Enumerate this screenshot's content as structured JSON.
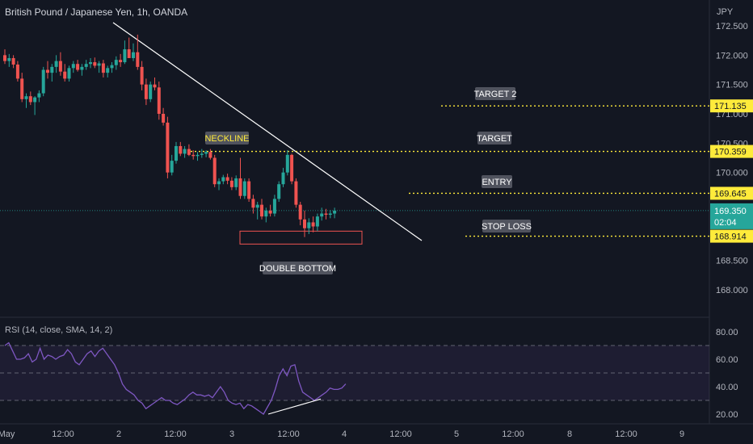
{
  "header": {
    "title": "British Pound / Japanese Yen, 1h, OANDA",
    "currency": "JPY"
  },
  "colors": {
    "background": "#131722",
    "up": "#26a69a",
    "down": "#ef5350",
    "levels": "#ffeb3b",
    "trendline": "#ffffff",
    "rsi": "#7e57c2",
    "axis_text": "#b2b5be",
    "last_price_badge": "#26a69a"
  },
  "chart_data": [
    {
      "type": "candlestick",
      "title": "British Pound / Japanese Yen, 1h, OANDA",
      "ylim": [
        167.7,
        172.75
      ],
      "y_ticks": [
        172.5,
        172.0,
        171.5,
        171.0,
        170.5,
        170.0,
        169.5,
        169.0,
        168.5,
        168.0
      ],
      "y_tick_labels": [
        "172.500",
        "172.000",
        "171.500",
        "171.000",
        "170.500",
        "170.000",
        "",
        "",
        "168.500",
        "168.000"
      ],
      "x_ticks": [
        "May",
        "12:00",
        "2",
        "12:00",
        "3",
        "12:00",
        "4",
        "12:00",
        "5",
        "12:00",
        "8",
        "12:00",
        "9"
      ],
      "last_price": {
        "value": 169.35,
        "label": "169.350",
        "countdown": "02:04"
      },
      "candles": [
        {
          "o": 172.0,
          "h": 172.1,
          "l": 171.85,
          "c": 171.9
        },
        {
          "o": 171.9,
          "h": 172.02,
          "l": 171.8,
          "c": 171.95
        },
        {
          "o": 171.95,
          "h": 172.0,
          "l": 171.78,
          "c": 171.84
        },
        {
          "o": 171.84,
          "h": 171.9,
          "l": 171.55,
          "c": 171.6
        },
        {
          "o": 171.6,
          "h": 171.7,
          "l": 171.2,
          "c": 171.25
        },
        {
          "o": 171.25,
          "h": 171.35,
          "l": 171.1,
          "c": 171.3
        },
        {
          "o": 171.3,
          "h": 171.38,
          "l": 171.15,
          "c": 171.2
        },
        {
          "o": 171.2,
          "h": 171.3,
          "l": 170.98,
          "c": 171.28
        },
        {
          "o": 171.28,
          "h": 171.4,
          "l": 171.2,
          "c": 171.35
        },
        {
          "o": 171.35,
          "h": 171.8,
          "l": 171.3,
          "c": 171.75
        },
        {
          "o": 171.75,
          "h": 171.9,
          "l": 171.6,
          "c": 171.7
        },
        {
          "o": 171.7,
          "h": 171.85,
          "l": 171.55,
          "c": 171.8
        },
        {
          "o": 171.8,
          "h": 172.0,
          "l": 171.7,
          "c": 171.9
        },
        {
          "o": 171.9,
          "h": 172.05,
          "l": 171.65,
          "c": 171.72
        },
        {
          "o": 171.72,
          "h": 171.85,
          "l": 171.55,
          "c": 171.6
        },
        {
          "o": 171.6,
          "h": 171.82,
          "l": 171.55,
          "c": 171.78
        },
        {
          "o": 171.78,
          "h": 171.9,
          "l": 171.7,
          "c": 171.85
        },
        {
          "o": 171.85,
          "h": 171.92,
          "l": 171.72,
          "c": 171.75
        },
        {
          "o": 171.75,
          "h": 171.85,
          "l": 171.65,
          "c": 171.8
        },
        {
          "o": 171.8,
          "h": 171.92,
          "l": 171.75,
          "c": 171.85
        },
        {
          "o": 171.85,
          "h": 171.95,
          "l": 171.78,
          "c": 171.88
        },
        {
          "o": 171.88,
          "h": 171.96,
          "l": 171.78,
          "c": 171.82
        },
        {
          "o": 171.82,
          "h": 171.9,
          "l": 171.7,
          "c": 171.86
        },
        {
          "o": 171.86,
          "h": 171.92,
          "l": 171.62,
          "c": 171.7
        },
        {
          "o": 171.7,
          "h": 171.82,
          "l": 171.62,
          "c": 171.78
        },
        {
          "o": 171.78,
          "h": 171.88,
          "l": 171.7,
          "c": 171.83
        },
        {
          "o": 171.83,
          "h": 171.98,
          "l": 171.75,
          "c": 171.92
        },
        {
          "o": 171.92,
          "h": 172.02,
          "l": 171.8,
          "c": 171.88
        },
        {
          "o": 171.88,
          "h": 172.25,
          "l": 171.85,
          "c": 172.1
        },
        {
          "o": 172.1,
          "h": 172.3,
          "l": 172.0,
          "c": 171.95
        },
        {
          "o": 171.95,
          "h": 172.2,
          "l": 171.9,
          "c": 172.05
        },
        {
          "o": 172.05,
          "h": 172.35,
          "l": 171.75,
          "c": 171.8
        },
        {
          "o": 171.8,
          "h": 171.9,
          "l": 171.4,
          "c": 171.5
        },
        {
          "o": 171.5,
          "h": 171.6,
          "l": 171.15,
          "c": 171.25
        },
        {
          "o": 171.25,
          "h": 171.55,
          "l": 171.2,
          "c": 171.5
        },
        {
          "o": 171.5,
          "h": 171.62,
          "l": 171.4,
          "c": 171.45
        },
        {
          "o": 171.45,
          "h": 171.55,
          "l": 170.9,
          "c": 171.0
        },
        {
          "o": 171.0,
          "h": 171.1,
          "l": 170.8,
          "c": 170.85
        },
        {
          "o": 170.85,
          "h": 170.95,
          "l": 169.9,
          "c": 170.0
        },
        {
          "o": 170.0,
          "h": 170.3,
          "l": 169.95,
          "c": 170.2
        },
        {
          "o": 170.2,
          "h": 170.52,
          "l": 170.15,
          "c": 170.45
        },
        {
          "o": 170.45,
          "h": 170.52,
          "l": 170.28,
          "c": 170.32
        },
        {
          "o": 170.32,
          "h": 170.45,
          "l": 170.25,
          "c": 170.4
        },
        {
          "o": 170.4,
          "h": 170.48,
          "l": 170.28,
          "c": 170.3
        },
        {
          "o": 170.3,
          "h": 170.38,
          "l": 170.22,
          "c": 170.28
        },
        {
          "o": 170.28,
          "h": 170.35,
          "l": 170.2,
          "c": 170.3
        },
        {
          "o": 170.3,
          "h": 170.4,
          "l": 170.25,
          "c": 170.32
        },
        {
          "o": 170.32,
          "h": 170.38,
          "l": 170.26,
          "c": 170.35
        },
        {
          "o": 170.35,
          "h": 170.4,
          "l": 170.22,
          "c": 170.25
        },
        {
          "o": 170.25,
          "h": 170.3,
          "l": 169.75,
          "c": 169.8
        },
        {
          "o": 169.8,
          "h": 169.9,
          "l": 169.7,
          "c": 169.85
        },
        {
          "o": 169.85,
          "h": 169.96,
          "l": 169.8,
          "c": 169.92
        },
        {
          "o": 169.92,
          "h": 169.98,
          "l": 169.8,
          "c": 169.86
        },
        {
          "o": 169.86,
          "h": 169.92,
          "l": 169.7,
          "c": 169.75
        },
        {
          "o": 169.75,
          "h": 169.95,
          "l": 169.7,
          "c": 169.9
        },
        {
          "o": 169.9,
          "h": 170.25,
          "l": 169.55,
          "c": 169.6
        },
        {
          "o": 169.6,
          "h": 169.9,
          "l": 169.55,
          "c": 169.85
        },
        {
          "o": 169.85,
          "h": 169.9,
          "l": 169.5,
          "c": 169.55
        },
        {
          "o": 169.55,
          "h": 169.62,
          "l": 169.3,
          "c": 169.4
        },
        {
          "o": 169.4,
          "h": 169.5,
          "l": 169.2,
          "c": 169.45
        },
        {
          "o": 169.45,
          "h": 169.55,
          "l": 169.2,
          "c": 169.25
        },
        {
          "o": 169.25,
          "h": 169.4,
          "l": 169.15,
          "c": 169.35
        },
        {
          "o": 169.35,
          "h": 169.45,
          "l": 169.25,
          "c": 169.3
        },
        {
          "o": 169.3,
          "h": 169.62,
          "l": 169.25,
          "c": 169.55
        },
        {
          "o": 169.55,
          "h": 169.85,
          "l": 169.5,
          "c": 169.8
        },
        {
          "o": 169.8,
          "h": 170.08,
          "l": 169.75,
          "c": 170.0
        },
        {
          "o": 170.0,
          "h": 170.38,
          "l": 169.95,
          "c": 170.3
        },
        {
          "o": 170.3,
          "h": 170.32,
          "l": 169.8,
          "c": 169.85
        },
        {
          "o": 169.85,
          "h": 169.9,
          "l": 169.4,
          "c": 169.45
        },
        {
          "o": 169.45,
          "h": 169.5,
          "l": 169.1,
          "c": 169.2
        },
        {
          "o": 169.2,
          "h": 169.35,
          "l": 168.9,
          "c": 169.05
        },
        {
          "o": 169.05,
          "h": 169.22,
          "l": 168.95,
          "c": 169.15
        },
        {
          "o": 169.15,
          "h": 169.25,
          "l": 168.98,
          "c": 169.08
        },
        {
          "o": 169.08,
          "h": 169.3,
          "l": 169.0,
          "c": 169.25
        },
        {
          "o": 169.25,
          "h": 169.4,
          "l": 169.18,
          "c": 169.3
        },
        {
          "o": 169.3,
          "h": 169.38,
          "l": 169.2,
          "c": 169.28
        },
        {
          "o": 169.28,
          "h": 169.36,
          "l": 169.22,
          "c": 169.3
        },
        {
          "o": 169.3,
          "h": 169.4,
          "l": 169.22,
          "c": 169.35
        }
      ],
      "levels": [
        {
          "name": "TARGET 2",
          "value": 171.135,
          "label": "171.135"
        },
        {
          "name": "NECKLINE / TARGET",
          "value": 170.359,
          "label": "170.359"
        },
        {
          "name": "ENTRY",
          "value": 169.645,
          "label": "169.645"
        },
        {
          "name": "STOP LOSS",
          "value": 168.914,
          "label": "168.914"
        }
      ],
      "annotations": [
        "TARGET 2",
        "TARGET",
        "ENTRY",
        "STOP LOSS",
        "NECKLINE",
        "DOUBLE BOTTOM"
      ],
      "trendline": {
        "from": {
          "t": "May 1 ~19:00",
          "y": 172.55
        },
        "to": {
          "t": "May 4 ~13:00",
          "y": 168.85
        }
      },
      "support_box": {
        "y_top": 169.0,
        "y_bottom": 168.78
      }
    },
    {
      "type": "line",
      "title": "RSI (14, close, SMA, 14, 2)",
      "ylim": [
        15,
        88
      ],
      "y_ticks": [
        80,
        60,
        40,
        20
      ],
      "y_tick_labels": [
        "80.00",
        "60.00",
        "40.00",
        "20.00"
      ],
      "bands": {
        "upper": 70,
        "middle": 50,
        "lower": 30
      },
      "values": [
        70,
        72,
        66,
        60,
        60,
        61,
        64,
        58,
        60,
        68,
        60,
        63,
        62,
        60,
        62,
        63,
        67,
        64,
        58,
        56,
        60,
        64,
        66,
        62,
        66,
        68,
        64,
        60,
        56,
        50,
        42,
        38,
        36,
        34,
        30,
        28,
        24,
        26,
        28,
        30,
        32,
        30,
        30,
        28,
        27,
        29,
        31,
        34,
        36,
        34,
        34,
        33,
        34,
        32,
        36,
        40,
        36,
        30,
        28,
        27,
        28,
        24,
        27,
        26,
        24,
        22,
        20,
        25,
        30,
        38,
        48,
        53,
        48,
        55,
        56,
        44,
        36,
        34,
        32,
        30,
        32,
        34,
        36,
        39,
        38,
        38,
        39,
        42
      ],
      "divergence_line": {
        "from": {
          "t": "May 3 ~08:00",
          "y": 20
        },
        "to": {
          "t": "May 4 ~01:00",
          "y": 31
        }
      }
    }
  ]
}
